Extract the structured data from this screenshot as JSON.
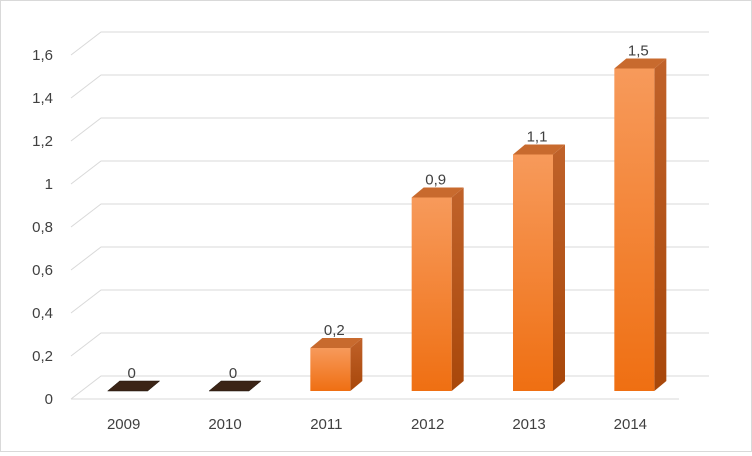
{
  "chart_data": {
    "type": "bar",
    "categories": [
      "2009",
      "2010",
      "2011",
      "2012",
      "2013",
      "2014"
    ],
    "values": [
      0,
      0,
      0.2,
      0.9,
      1.1,
      1.5
    ],
    "data_labels": [
      "0",
      "0",
      "0,2",
      "0,9",
      "1,1",
      "1,5"
    ],
    "y_ticks": [
      "0",
      "0,2",
      "0,4",
      "0,6",
      "0,8",
      "1",
      "1,2",
      "1,4",
      "1,6"
    ],
    "ylim": [
      0,
      1.6
    ],
    "title": "",
    "xlabel": "",
    "ylabel": "",
    "grid": true,
    "legend": "none",
    "style": "3d-column",
    "colors": {
      "bar_front_top": "#f79a5b",
      "bar_front_bottom": "#ef6f12",
      "bar_side": "#b5520d",
      "bar_top": "#c86a2e",
      "zero_bar": "#3b2416",
      "grid": "#d9d9d9",
      "text": "#404040"
    }
  }
}
